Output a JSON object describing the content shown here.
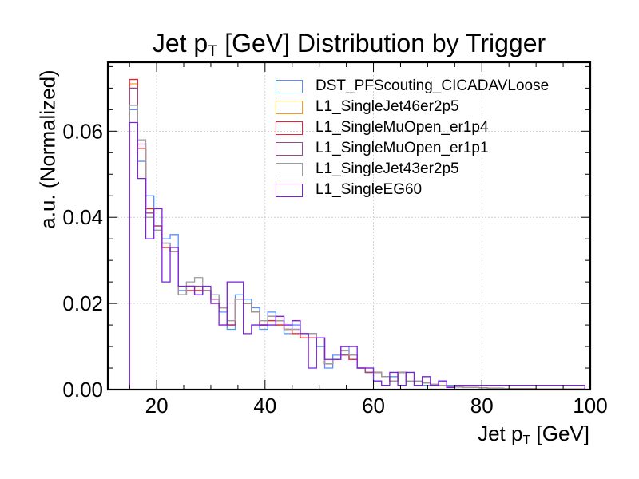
{
  "chart_data": {
    "type": "histogram",
    "title_main": "Jet p",
    "title_sub": "T",
    "title_rest": " [GeV] Distribution by Trigger",
    "xlabel_main": "Jet p",
    "xlabel_sub": "T",
    "xlabel_rest": " [GeV]",
    "ylabel": "a.u. (Normalized)",
    "xlim": [
      11,
      100
    ],
    "ylim": [
      0,
      0.076
    ],
    "xticks": [
      20,
      40,
      60,
      80,
      100
    ],
    "yticks": [
      0.0,
      0.02,
      0.04,
      0.06
    ],
    "ytick_labels": [
      "0.00",
      "0.02",
      "0.04",
      "0.06"
    ],
    "xtick_labels": [
      "20",
      "40",
      "60",
      "80",
      "100"
    ],
    "grid": true,
    "legend_position": "top-right",
    "bin_edges": [
      15,
      16.5,
      18,
      19.5,
      21,
      22.5,
      24,
      25.5,
      27,
      28.5,
      30,
      31.5,
      33,
      34.5,
      36,
      37.5,
      39,
      40.5,
      42,
      43.5,
      45,
      46.5,
      48,
      49.5,
      51,
      52.5,
      54,
      55.5,
      57,
      58.5,
      60,
      61.5,
      63,
      64.5,
      66,
      67.5,
      69,
      70.5,
      72,
      73.5,
      75,
      76.5,
      78,
      79.5,
      81,
      82.5,
      84,
      85.5,
      87,
      88.5,
      90,
      91.5,
      93,
      94.5,
      96,
      97.5,
      99
    ],
    "series": [
      {
        "name": "DST_PFScouting_CICADAVLoose",
        "color": "#5790fc",
        "values": [
          0.065,
          0.053,
          0.045,
          0.037,
          0.035,
          0.036,
          0.023,
          0.024,
          0.022,
          0.023,
          0.022,
          0.018,
          0.014,
          0.022,
          0.021,
          0.019,
          0.014,
          0.018,
          0.016,
          0.013,
          0.015,
          0.013,
          0.012,
          0.01,
          0.005,
          0.008,
          0.01,
          0.007,
          0.005,
          0.004,
          0.004,
          0.003,
          0.003,
          0.004,
          0.002,
          0.002,
          0.001,
          0.001,
          0.001,
          0.001,
          0.0006,
          0.0005,
          0.0005,
          0.0004,
          0.0003,
          0.0003,
          0.0002,
          0.0002,
          0.0002,
          0.0002,
          0.0001,
          0.0001,
          0.0001,
          0.0001,
          0.0001,
          0.0001
        ]
      },
      {
        "name": "L1_SingleJet46er2p5",
        "color": "#f89c20",
        "values": [
          0.071,
          0.056,
          0.042,
          0.038,
          0.033,
          0.032,
          0.022,
          0.024,
          0.023,
          0.023,
          0.021,
          0.019,
          0.015,
          0.021,
          0.02,
          0.018,
          0.015,
          0.017,
          0.015,
          0.014,
          0.013,
          0.012,
          0.013,
          0.012,
          0.006,
          0.007,
          0.008,
          0.008,
          0.005,
          0.004,
          0.004,
          0.003,
          0.002,
          0.004,
          0.002,
          0.002,
          0.0015,
          0.0012,
          0.001,
          0.0008,
          0.0006,
          0.0005,
          0.0005,
          0.0004,
          0.0003,
          0.0003,
          0.0002,
          0.0002,
          0.0002,
          0.0002,
          0.0001,
          0.0001,
          0.0001,
          0.0001,
          0.0001,
          0.0001
        ]
      },
      {
        "name": "L1_SingleMuOpen_er1p4",
        "color": "#e42536",
        "values": [
          0.072,
          0.056,
          0.042,
          0.038,
          0.033,
          0.032,
          0.022,
          0.023,
          0.023,
          0.023,
          0.021,
          0.019,
          0.015,
          0.021,
          0.02,
          0.018,
          0.015,
          0.016,
          0.015,
          0.014,
          0.013,
          0.012,
          0.012,
          0.012,
          0.006,
          0.007,
          0.008,
          0.007,
          0.005,
          0.004,
          0.004,
          0.003,
          0.002,
          0.004,
          0.002,
          0.002,
          0.0015,
          0.0012,
          0.001,
          0.0008,
          0.0006,
          0.0005,
          0.0005,
          0.0004,
          0.0003,
          0.0003,
          0.0002,
          0.0002,
          0.0002,
          0.0002,
          0.0001,
          0.0001,
          0.0001,
          0.0001,
          0.0001,
          0.0001
        ]
      },
      {
        "name": "L1_SingleMuOpen_er1p1",
        "color": "#964a8b",
        "values": [
          0.07,
          0.057,
          0.041,
          0.038,
          0.034,
          0.032,
          0.022,
          0.024,
          0.024,
          0.023,
          0.021,
          0.019,
          0.015,
          0.021,
          0.02,
          0.018,
          0.015,
          0.017,
          0.016,
          0.014,
          0.014,
          0.013,
          0.013,
          0.012,
          0.006,
          0.007,
          0.008,
          0.008,
          0.005,
          0.004,
          0.004,
          0.003,
          0.002,
          0.004,
          0.002,
          0.002,
          0.0015,
          0.0012,
          0.001,
          0.0008,
          0.0006,
          0.0005,
          0.0005,
          0.0004,
          0.0003,
          0.0003,
          0.0002,
          0.0002,
          0.0002,
          0.0002,
          0.0001,
          0.0001,
          0.0001,
          0.0001,
          0.0001,
          0.0001
        ]
      },
      {
        "name": "L1_SingleJet43er2p5",
        "color": "#9c9ca1",
        "values": [
          0.066,
          0.058,
          0.04,
          0.037,
          0.034,
          0.032,
          0.022,
          0.025,
          0.026,
          0.023,
          0.022,
          0.019,
          0.016,
          0.021,
          0.02,
          0.018,
          0.016,
          0.017,
          0.016,
          0.014,
          0.014,
          0.013,
          0.013,
          0.012,
          0.006,
          0.007,
          0.009,
          0.008,
          0.005,
          0.005,
          0.004,
          0.003,
          0.002,
          0.004,
          0.002,
          0.002,
          0.0015,
          0.0012,
          0.001,
          0.0008,
          0.0006,
          0.0005,
          0.0005,
          0.0004,
          0.0003,
          0.0003,
          0.0002,
          0.0002,
          0.0002,
          0.0002,
          0.0001,
          0.0001,
          0.0001,
          0.0001,
          0.0001,
          0.0001
        ]
      },
      {
        "name": "L1_SingleEG60",
        "color": "#7a21dd",
        "values": [
          0.062,
          0.049,
          0.035,
          0.042,
          0.025,
          0.033,
          0.024,
          0.024,
          0.022,
          0.024,
          0.02,
          0.015,
          0.025,
          0.025,
          0.013,
          0.015,
          0.015,
          0.015,
          0.017,
          0.015,
          0.016,
          0.013,
          0.005,
          0.012,
          0.007,
          0.007,
          0.01,
          0.01,
          0.005,
          0.005,
          0.002,
          0.001,
          0.004,
          0.001,
          0.004,
          0.001,
          0.003,
          0.001,
          0.002,
          0.0005,
          0.001,
          0.001,
          0.001,
          0.001,
          0.001,
          0.001,
          0.001,
          0.001,
          0.001,
          0.001,
          0.001,
          0.001,
          0.001,
          0.001,
          0.001,
          0.001
        ]
      }
    ]
  }
}
